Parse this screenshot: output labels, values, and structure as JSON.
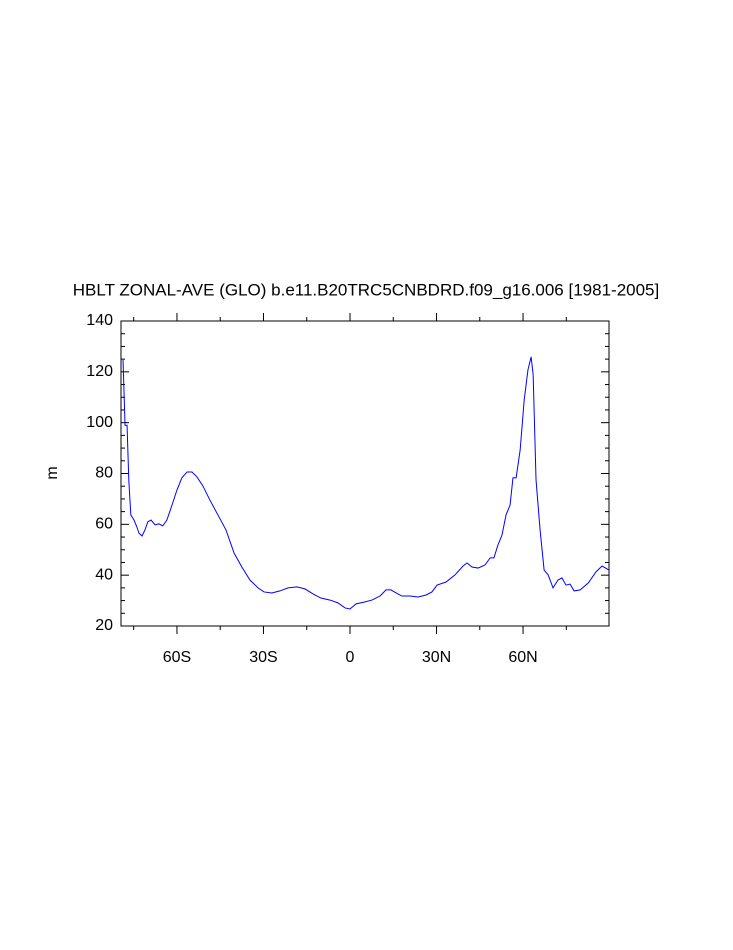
{
  "chart_data": {
    "type": "line",
    "title": "HBLT ZONAL-AVE (GLO) b.e11.B20TRC5CNBDRD.f09_g16.006 [1981-2005]",
    "y_label": "m",
    "xlim": [
      -79.4,
      89.8
    ],
    "ylim": [
      20,
      140
    ],
    "xticks": [
      {
        "value": -60,
        "label": "60S"
      },
      {
        "value": -30,
        "label": "30S"
      },
      0,
      {
        "value": 30,
        "label": "30N"
      },
      {
        "value": 60,
        "label": "60N"
      }
    ],
    "yticks": [
      20,
      40,
      60,
      80,
      100,
      120,
      140
    ],
    "xminorticks": [
      -75,
      -45,
      -15,
      15,
      45,
      75
    ],
    "yminorticks": [
      25,
      30,
      35,
      45,
      50,
      55,
      65,
      70,
      75,
      85,
      90,
      95,
      105,
      110,
      115,
      125,
      130,
      135
    ],
    "grid": false,
    "series": [
      {
        "color": "#0000ff",
        "x": [
          -78.7,
          -78.0,
          -77.3,
          -76.7,
          -76.0,
          -74.9,
          -73.9,
          -73.2,
          -72.1,
          -71.1,
          -70.1,
          -69.0,
          -67.6,
          -66.3,
          -64.9,
          -63.5,
          -61.7,
          -60.0,
          -58.3,
          -56.5,
          -54.8,
          -53.1,
          -51.0,
          -48.6,
          -45.8,
          -43.0,
          -40.2,
          -37.5,
          -34.7,
          -31.9,
          -29.8,
          -27.1,
          -24.3,
          -21.5,
          -18.4,
          -15.6,
          -12.8,
          -10.1,
          -6.9,
          -4.2,
          -1.7,
          0,
          2.1,
          4.9,
          7.6,
          10.4,
          12.5,
          14.2,
          16.0,
          18.0,
          20.8,
          23.6,
          26.4,
          28.4,
          30.2,
          33.3,
          36.4,
          39.2,
          40.6,
          42.3,
          44.4,
          46.8,
          48.6,
          49.9,
          51.3,
          52.7,
          54.1,
          55.5,
          56.5,
          57.6,
          59.0,
          60.4,
          61.7,
          62.8,
          63.5,
          64.5,
          65.9,
          67.3,
          68.7,
          70.4,
          72.1,
          73.5,
          74.9,
          76.3,
          77.7,
          79.8,
          82.6,
          85.3,
          87.4,
          89.8
        ],
        "values": [
          124.7,
          99,
          99,
          77.5,
          63.7,
          61.7,
          59,
          56.6,
          55.4,
          57.8,
          61,
          61.7,
          59.8,
          60.2,
          59.4,
          61.7,
          67.6,
          73.5,
          78.3,
          80.6,
          80.6,
          78.7,
          75.1,
          69.6,
          63.7,
          57.8,
          48.7,
          43.2,
          38.1,
          35,
          33.4,
          33,
          33.8,
          35,
          35.4,
          34.6,
          32.6,
          31,
          30.2,
          29.1,
          27.1,
          26.7,
          28.7,
          29.4,
          30.2,
          31.8,
          34.2,
          34.2,
          33,
          31.8,
          31.8,
          31.4,
          32.2,
          33.4,
          36.1,
          37.3,
          40.1,
          43.6,
          44.8,
          43.2,
          42.8,
          44,
          46.8,
          46.8,
          51.9,
          55.8,
          63.7,
          67.6,
          78.3,
          78.3,
          89.3,
          109,
          120.8,
          125.9,
          118.8,
          77.5,
          57.8,
          42,
          40.1,
          35,
          38.1,
          38.9,
          36.1,
          36.5,
          33.8,
          34.2,
          36.9,
          41.3,
          43.6,
          42
        ]
      }
    ]
  }
}
